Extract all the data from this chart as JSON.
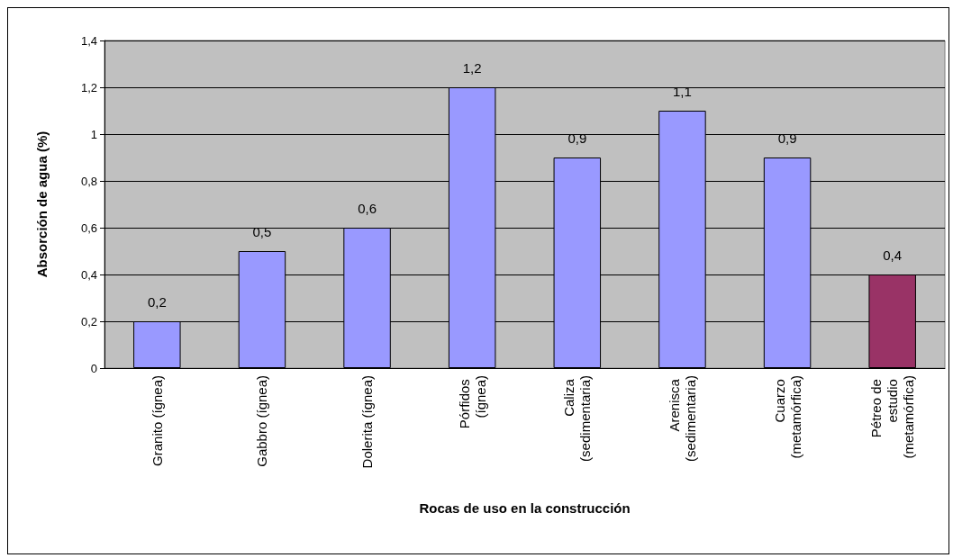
{
  "chart_data": {
    "type": "bar",
    "xlabel": "Rocas de uso en la construcción",
    "ylabel": "Absorción de agua (%)",
    "categories": [
      "Granito (ígnea)",
      "Gabbro (ígnea)",
      "Dolerita (ígnea)",
      "Pórfidos (ígnea)",
      "Caliza (sedimentaria)",
      "Arenisca (sedimentaria)",
      "Cuarzo (metamórfica)",
      "Pétreo de estudio (metamórfica)"
    ],
    "values": [
      0.2,
      0.5,
      0.6,
      1.2,
      0.9,
      1.1,
      0.9,
      0.4
    ],
    "colors": [
      "#9999ff",
      "#9999ff",
      "#9999ff",
      "#9999ff",
      "#9999ff",
      "#9999ff",
      "#9999ff",
      "#993366"
    ],
    "value_labels": [
      "0,2",
      "0,5",
      "0,6",
      "1,2",
      "0,9",
      "1,1",
      "0,9",
      "0,4"
    ],
    "ylim": [
      0,
      1.4
    ],
    "yticks": [
      0,
      {
        "value": 0.2,
        "label": "0,2"
      },
      {
        "value": 0.4,
        "label": "0,4"
      },
      {
        "value": 0.6,
        "label": "0,6"
      },
      {
        "value": 0.8,
        "label": "0,8"
      },
      1,
      {
        "value": 1.2,
        "label": "1,2"
      },
      {
        "value": 1.4,
        "label": "1,4"
      }
    ],
    "grid": "y"
  }
}
